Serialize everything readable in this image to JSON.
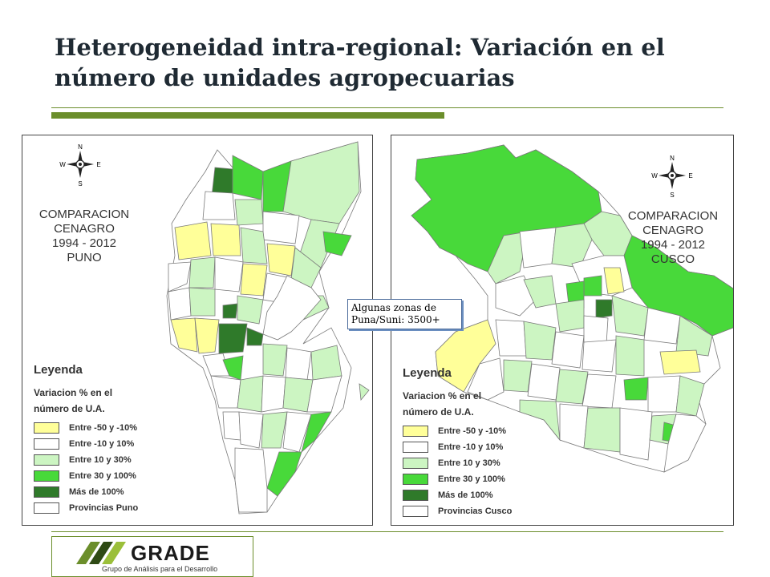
{
  "title": "Heterogeneidad intra-regional: Variación en el número de unidades agropecuarias",
  "colors": {
    "accent": "#6b8e2b",
    "class_neg": "#ffff99",
    "class_zero": "#ffffff",
    "class_10_30": "#ccf5c2",
    "class_30_100": "#48d93a",
    "class_100": "#2f7a2a",
    "border": "#7a7a7a"
  },
  "compass_labels": {
    "n": "N",
    "s": "S",
    "e": "E",
    "w": "W"
  },
  "maps": [
    {
      "id": "puno",
      "title_lines": [
        "COMPARACION",
        "CENAGRO",
        "1994 - 2012",
        "PUNO"
      ],
      "legend": {
        "title": "Leyenda",
        "subtitle_lines": [
          "Variacion % en el",
          "número de U.A."
        ],
        "items": [
          {
            "label": "Entre -50 y -10%",
            "color": "#ffff99"
          },
          {
            "label": "Entre -10 y 10%",
            "color": "#ffffff"
          },
          {
            "label": "Entre 10 y 30%",
            "color": "#ccf5c2"
          },
          {
            "label": "Entre 30 y 100%",
            "color": "#48d93a"
          },
          {
            "label": "Más de 100%",
            "color": "#2f7a2a"
          },
          {
            "label": "Provincias Puno",
            "color": "#ffffff"
          }
        ]
      }
    },
    {
      "id": "cusco",
      "title_lines": [
        "COMPARACION",
        "CENAGRO",
        "1994 - 2012",
        "CUSCO"
      ],
      "legend": {
        "title": "Leyenda",
        "subtitle_lines": [
          "Variacion % en el",
          "número de U.A."
        ],
        "items": [
          {
            "label": "Entre -50 y -10%",
            "color": "#ffff99"
          },
          {
            "label": "Entre -10 y 10%",
            "color": "#ffffff"
          },
          {
            "label": "Entre 10 y 30%",
            "color": "#ccf5c2"
          },
          {
            "label": "Entre 30 y 100%",
            "color": "#48d93a"
          },
          {
            "label": "Más de 100%",
            "color": "#2f7a2a"
          },
          {
            "label": "Provincias Cusco",
            "color": "#ffffff"
          }
        ]
      }
    }
  ],
  "callout": {
    "lines": [
      "Algunas zonas de",
      "Puna/Suni: 3500+"
    ]
  },
  "logo": {
    "word": "GRADE",
    "tagline": "Grupo de Análisis para el Desarrollo"
  }
}
